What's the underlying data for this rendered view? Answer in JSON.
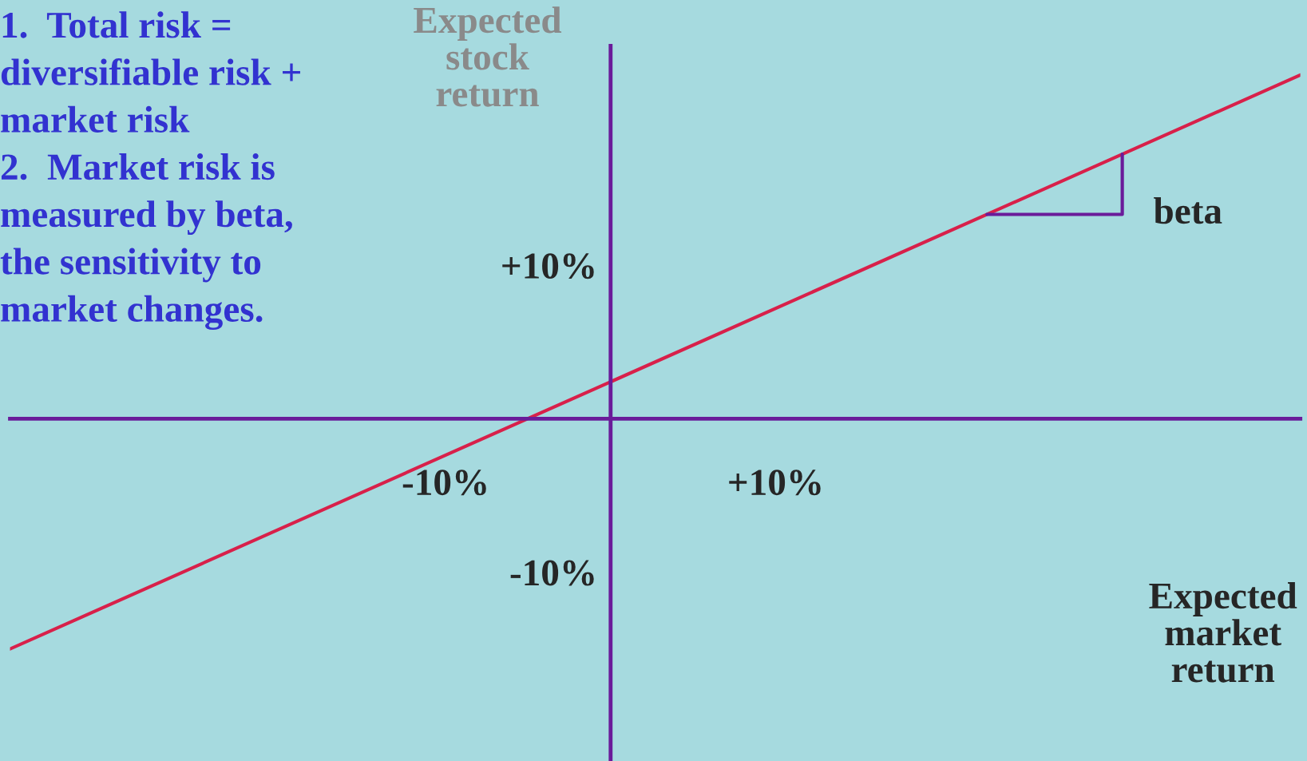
{
  "chart_data": {
    "type": "line",
    "xlabel": "Expected\nmarket\nreturn",
    "ylabel": "Expected\nstock\nreturn",
    "series": [
      {
        "color": "#d8204a",
        "x": [
          -36.4,
          41.8
        ],
        "values": [
          -15.0,
          22.4
        ]
      }
    ],
    "xlim": [
      -36.4,
      41.8
    ],
    "ylim": [
      -22.3,
      24.3
    ],
    "xticks": [
      {
        "value": -10,
        "label": "-10%"
      },
      {
        "value": 10,
        "label": "+10%"
      }
    ],
    "yticks": [
      {
        "value": -10,
        "label": "-10%"
      },
      {
        "value": 10,
        "label": "+10%"
      }
    ],
    "annotations": [
      "1.  Total risk =\ndiversifiable risk +\nmarket risk\n2.  Market risk is\nmeasured by beta,\nthe sensitivity to\nmarket changes.",
      "beta"
    ],
    "grid": false,
    "legend": false,
    "marker": "none",
    "line_style": "solid"
  }
}
